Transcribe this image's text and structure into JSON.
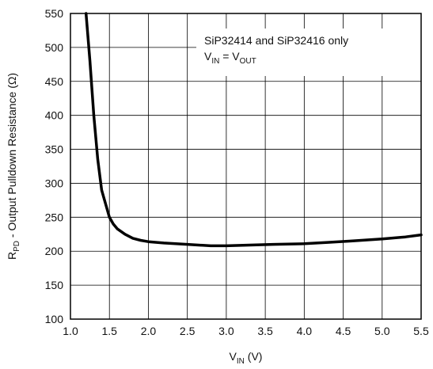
{
  "chart_data": {
    "type": "line",
    "xlim": [
      1.0,
      5.5
    ],
    "ylim": [
      100,
      550
    ],
    "x_ticks": [
      "1.0",
      "1.5",
      "2.0",
      "2.5",
      "3.0",
      "3.5",
      "4.0",
      "4.5",
      "5.0",
      "5.5"
    ],
    "y_ticks": [
      "100",
      "150",
      "200",
      "250",
      "300",
      "350",
      "400",
      "450",
      "500",
      "550"
    ],
    "xlabel": {
      "main": "V",
      "sub": "IN",
      "unit": " (V)"
    },
    "ylabel": {
      "main": "R",
      "sub": "PD",
      "rest": " - Output Pulldown Resistance (Ω)"
    },
    "grid": true,
    "annotation": {
      "line1": "SiP32414 and SiP32416 only",
      "line2_main": "V",
      "line2_sub1": "IN",
      "line2_eq": " = V",
      "line2_sub2": "OUT"
    },
    "series": [
      {
        "color": "#000000",
        "x": [
          1.2,
          1.25,
          1.3,
          1.35,
          1.4,
          1.45,
          1.5,
          1.55,
          1.6,
          1.7,
          1.8,
          1.9,
          2.0,
          2.2,
          2.5,
          2.8,
          3.0,
          3.3,
          3.6,
          4.0,
          4.3,
          4.6,
          5.0,
          5.3,
          5.5
        ],
        "y": [
          550,
          480,
          400,
          335,
          290,
          270,
          250,
          240,
          233,
          225,
          219,
          216,
          214,
          212,
          210,
          208,
          208,
          209,
          210,
          211,
          213,
          215,
          218,
          221,
          224
        ]
      }
    ]
  }
}
